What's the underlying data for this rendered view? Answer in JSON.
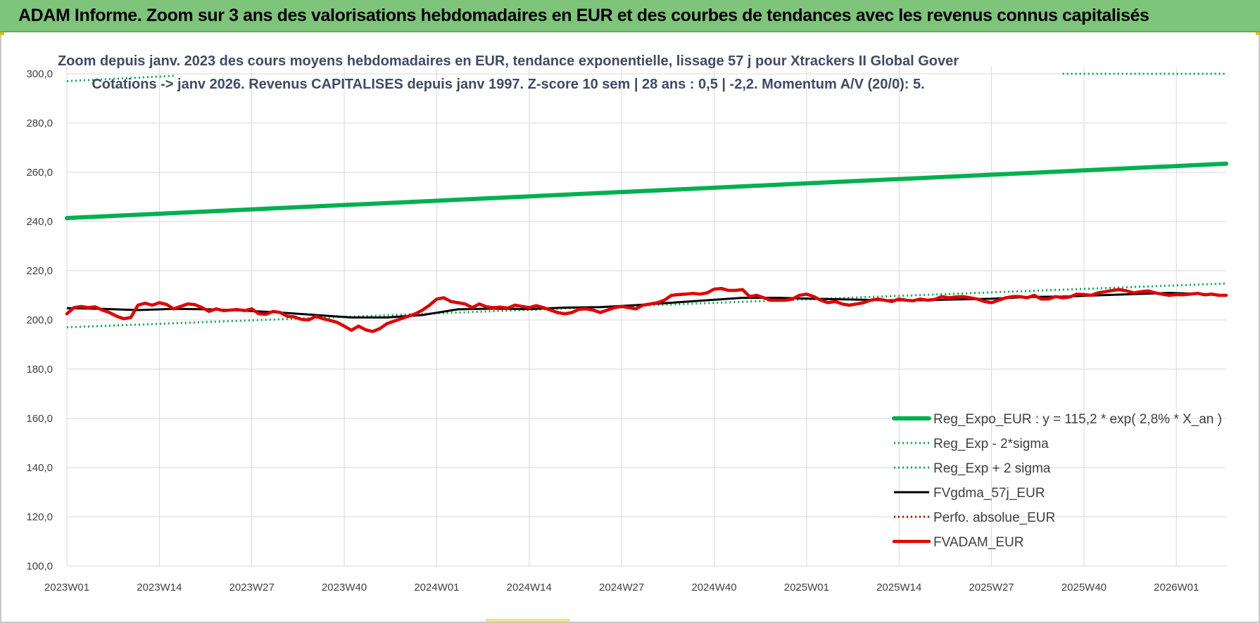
{
  "banner": {
    "title": "ADAM Informe. Zoom sur 3 ans des valorisations hebdomadaires en EUR et des courbes de tendances avec les revenus connus capitalisés"
  },
  "colors": {
    "banner_bg": "#7ec47a",
    "reg_expo": "#00b050",
    "reg_dotted": "#00b050",
    "fvgdma": "#000000",
    "perfo": "#c00000",
    "fvadam": "#e00000",
    "grid": "#d9d9d9",
    "title": "#3f4a66"
  },
  "chart_data": {
    "type": "line",
    "title_line1": "Zoom depuis janv. 2023 des cours moyens hebdomadaires en EUR, tendance exponentielle, lissage 57 j pour Xtrackers II Global Gover",
    "title_line2": "Cotations -> janv 2026. Revenus CAPITALISES depuis janv 1997. Z-score 10 sem | 28 ans : 0,5 | -2,2. Momentum A/V (20/0): 5.",
    "ylim": [
      100,
      300
    ],
    "yticks": [
      "100,0",
      "120,0",
      "140,0",
      "160,0",
      "180,0",
      "200,0",
      "220,0",
      "240,0",
      "260,0",
      "280,0",
      "300,0"
    ],
    "x_tick_labels": [
      "2023W01",
      "2023W14",
      "2023W27",
      "2023W40",
      "2024W01",
      "2024W14",
      "2024W27",
      "2024W40",
      "2025W01",
      "2025W14",
      "2025W27",
      "2025W40",
      "2026W01"
    ],
    "x_range_weeks": [
      0,
      163
    ],
    "series": [
      {
        "name": "Reg_Expo_EUR : y = 115,2 * exp( 2,8% *  X_an )",
        "style": "solid-thick",
        "x": [
          0,
          163
        ],
        "y": [
          241.4,
          263.5
        ]
      },
      {
        "name": "Reg_Exp - 2*sigma",
        "style": "dotted",
        "x": [
          0,
          163
        ],
        "y": [
          197.0,
          214.8
        ]
      },
      {
        "name": "Reg_Exp + 2 sigma",
        "style": "dotted",
        "x": [
          0,
          15,
          140,
          163
        ],
        "y": [
          297.0,
          299.2,
          300.0,
          300.0
        ],
        "visible_ranges": [
          [
            0,
            15
          ],
          [
            140,
            163
          ]
        ]
      },
      {
        "name": "FVgdma_57j_EUR",
        "style": "solid",
        "x": [
          0,
          5,
          10,
          15,
          20,
          25,
          30,
          35,
          40,
          45,
          50,
          55,
          60,
          65,
          70,
          75,
          80,
          85,
          90,
          95,
          100,
          105,
          110,
          115,
          120,
          125,
          130,
          135,
          140,
          145,
          150,
          155,
          160,
          163
        ],
        "y": [
          204.8,
          204.5,
          204.0,
          204.5,
          204.3,
          203.8,
          203.0,
          202.0,
          201.0,
          201.0,
          202.0,
          204.3,
          204.6,
          204.4,
          205.0,
          205.2,
          206.0,
          207.0,
          208.0,
          209.0,
          209.0,
          208.6,
          208.3,
          208.0,
          208.0,
          208.3,
          208.6,
          209.3,
          209.5,
          210.0,
          210.5,
          211.0,
          210.5,
          210.0
        ]
      },
      {
        "name": "Perfo. absolue_EUR",
        "style": "dotted",
        "x": [],
        "y": []
      },
      {
        "name": "FVADAM_EUR",
        "style": "solid-thick",
        "x": [
          0,
          1,
          2,
          3,
          4,
          5,
          6,
          7,
          8,
          9,
          10,
          11,
          12,
          13,
          14,
          15,
          16,
          17,
          18,
          19,
          20,
          21,
          22,
          23,
          24,
          25,
          26,
          27,
          28,
          29,
          30,
          31,
          32,
          33,
          34,
          35,
          36,
          37,
          38,
          39,
          40,
          41,
          42,
          43,
          44,
          45,
          46,
          47,
          48,
          49,
          50,
          51,
          52,
          53,
          54,
          55,
          56,
          57,
          58,
          59,
          60,
          61,
          62,
          63,
          64,
          65,
          66,
          67,
          68,
          69,
          70,
          71,
          72,
          73,
          74,
          75,
          76,
          77,
          78,
          79,
          80,
          81,
          82,
          83,
          84,
          85,
          86,
          87,
          88,
          89,
          90,
          91,
          92,
          93,
          94,
          95,
          96,
          97,
          98,
          99,
          100,
          101,
          102,
          103,
          104,
          105,
          106,
          107,
          108,
          109,
          110,
          111,
          112,
          113,
          114,
          115,
          116,
          117,
          118,
          119,
          120,
          121,
          122,
          123,
          124,
          125,
          126,
          127,
          128,
          129,
          130,
          131,
          132,
          133,
          134,
          135,
          136,
          137,
          138,
          139,
          140,
          141,
          142,
          143,
          144,
          145,
          146,
          147,
          148,
          149,
          150,
          151,
          152,
          153,
          154,
          155,
          156,
          157,
          158,
          159,
          160,
          161,
          162,
          163
        ],
        "y": [
          202.5,
          205.0,
          205.5,
          205.0,
          205.3,
          204.0,
          203.0,
          201.5,
          200.5,
          201.0,
          206.0,
          206.8,
          206.0,
          207.0,
          206.3,
          204.5,
          205.5,
          206.5,
          206.2,
          205.0,
          203.5,
          204.5,
          203.8,
          204.0,
          204.2,
          203.8,
          204.5,
          202.5,
          202.3,
          203.5,
          203.0,
          201.5,
          201.2,
          200.2,
          200.0,
          201.5,
          200.5,
          199.8,
          199.0,
          197.5,
          195.8,
          197.5,
          196.0,
          195.3,
          196.5,
          198.5,
          199.5,
          200.5,
          201.5,
          202.5,
          204.0,
          206.0,
          208.5,
          209.0,
          207.5,
          207.0,
          206.5,
          205.0,
          206.5,
          205.3,
          205.0,
          205.2,
          204.8,
          206.0,
          205.5,
          205.0,
          205.8,
          205.0,
          204.0,
          203.0,
          202.5,
          203.0,
          204.3,
          204.5,
          204.0,
          203.0,
          204.0,
          205.0,
          205.5,
          205.0,
          204.5,
          206.0,
          206.5,
          207.0,
          208.0,
          210.0,
          210.3,
          210.5,
          210.8,
          210.5,
          211.0,
          212.5,
          212.8,
          212.0,
          212.0,
          212.3,
          209.5,
          210.0,
          209.0,
          208.0,
          208.0,
          208.0,
          208.5,
          210.0,
          210.5,
          209.5,
          208.0,
          207.0,
          207.5,
          206.5,
          206.0,
          206.5,
          207.0,
          208.0,
          208.5,
          208.0,
          207.5,
          208.5,
          208.0,
          207.8,
          208.5,
          208.0,
          208.3,
          209.5,
          209.0,
          209.3,
          209.5,
          209.0,
          208.5,
          207.5,
          207.0,
          208.0,
          209.0,
          209.5,
          209.5,
          209.0,
          210.0,
          208.5,
          208.5,
          209.5,
          209.0,
          209.3,
          210.5,
          210.3,
          210.0,
          211.0,
          211.5,
          212.0,
          212.3,
          211.8,
          211.0,
          211.5,
          211.8,
          211.0,
          210.5,
          210.0,
          210.3,
          210.2,
          210.5,
          210.8,
          210.2,
          210.5,
          210.0,
          210.0
        ]
      }
    ],
    "legend_position": "bottom-right"
  }
}
